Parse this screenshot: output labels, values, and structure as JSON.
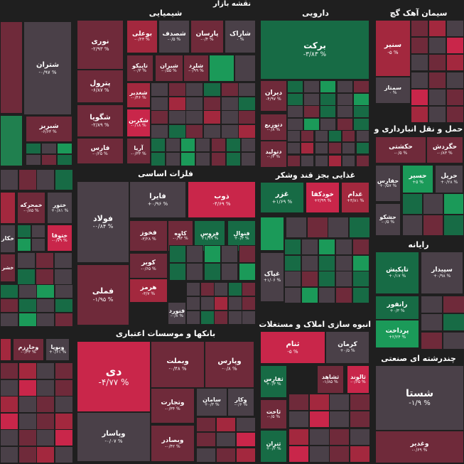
{
  "title": "نقشه بازار",
  "colors": {
    "pos": "#1b9a59",
    "pos_dark": "#176b45",
    "pos_mid": "#20804f",
    "neutral": "#4a4048",
    "neg_dark": "#6f2a3a",
    "neg": "#a3283e",
    "neg_bright": "#c9264a"
  },
  "chart_data": {
    "type": "treemap",
    "sectors": [
      {
        "name": "شیمیایی",
        "stocks": [
          {
            "name": "نوری",
            "change": "-۲/۹۳ %"
          },
          {
            "name": "بوعلی",
            "change": "-۰/۲۳ %"
          },
          {
            "name": "شصدف",
            "change": "-۰/۵ %"
          },
          {
            "name": "پارسان",
            "change": "-۰/۴ %"
          },
          {
            "name": "شاراک",
            "change": "۰ %"
          },
          {
            "name": "پترول",
            "change": "-۶/۸۷ %"
          },
          {
            "name": "تاپیکو",
            "change": "-۰/۳ %"
          },
          {
            "name": "شیران",
            "change": "-۰/۵۵ %"
          },
          {
            "name": "شلرد",
            "change": "-۰/۹۹ %"
          },
          {
            "name": "شگویا",
            "change": "-۲/۸۹ %"
          },
          {
            "name": "شغدیر",
            "change": "-۰/۴۶ %"
          },
          {
            "name": "فارس",
            "change": "-۰/۲۵ %"
          },
          {
            "name": "شکربن",
            "change": "-۰/۱۸ %"
          },
          {
            "name": "آریا",
            "change": "-۰/۳۳ %"
          }
        ]
      },
      {
        "name": "دارویی",
        "stocks": [
          {
            "name": "برکت",
            "change": "-۳/۸۳ %"
          },
          {
            "name": "دیران",
            "change": "-۴/۹۷ %"
          },
          {
            "name": "دتوزیع",
            "change": "-۰/۸ %"
          },
          {
            "name": "دتولید",
            "change": "-۰/۳ %"
          }
        ]
      },
      {
        "name": "سیمان آهک گچ",
        "stocks": [
          {
            "name": "سنیر",
            "change": "-۵ %"
          },
          {
            "name": "سمتاز",
            "change": "۰ %"
          }
        ]
      },
      {
        "name": "حمل و نقل انبارداری و",
        "stocks": [
          {
            "name": "حکشتی",
            "change": "-۰/۵ %"
          },
          {
            "name": "حگردش",
            "change": "-۰/۸۳ %"
          },
          {
            "name": "حفارس",
            "change": "+۰/۵۷ %"
          },
          {
            "name": "حسیر",
            "change": "+۵ %"
          },
          {
            "name": "حریل",
            "change": "+۰/۲۸ %"
          },
          {
            "name": "حشکو",
            "change": "-۰/۵ %"
          }
        ]
      },
      {
        "name": "فلزات اساسی",
        "stocks": [
          {
            "name": "فولاد",
            "change": "-۰/۸۴ %"
          },
          {
            "name": "فایرا",
            "change": "+۰/۹۶ %"
          },
          {
            "name": "ذوب",
            "change": "-۴/۶۹ %"
          },
          {
            "name": "فخوز",
            "change": "-۳/۲۸ %"
          },
          {
            "name": "کاوه",
            "change": "-۰/۹۳ %"
          },
          {
            "name": "فروس",
            "change": "+۱/۹۹ %"
          },
          {
            "name": "فنوال",
            "change": "+۰/۳ %"
          },
          {
            "name": "کویر",
            "change": "-۰/۶۵ %"
          },
          {
            "name": "فملی",
            "change": "-۱/۹۵ %"
          },
          {
            "name": "هرمز",
            "change": "-۳/۷ %"
          },
          {
            "name": "فنورد",
            "change": "-۰/۸ %"
          }
        ]
      },
      {
        "name": "غذایی بجز قند وشکر",
        "stocks": [
          {
            "name": "غزر",
            "change": "+۱/۶۹ %"
          },
          {
            "name": "خودکفا",
            "change": "+۲/۹۹ %"
          },
          {
            "name": "غدام",
            "change": "+۳/۸۱ %"
          },
          {
            "name": "غپاک",
            "change": "+۱/۰۶ %"
          }
        ]
      },
      {
        "name": "رایانه",
        "stocks": [
          {
            "name": "تاپکیش",
            "change": "+۰/۱۷ %"
          },
          {
            "name": "سپیدار",
            "change": "+۰/۹۸ %"
          },
          {
            "name": "رانفور",
            "change": "+۰/۳ %"
          },
          {
            "name": "پرداخت",
            "change": "+۲/۲۴ %"
          }
        ]
      },
      {
        "name": "بانکها و موسسات اعتباری",
        "stocks": [
          {
            "name": "دی",
            "change": "-۴/۷۷ %"
          },
          {
            "name": "وبملت",
            "change": "-۰/۴۸ %"
          },
          {
            "name": "وپارس",
            "change": "-۰/۸ %"
          },
          {
            "name": "وتجارت",
            "change": "-۰/۳۴ %"
          },
          {
            "name": "سامان",
            "change": "+۰/۳ %"
          },
          {
            "name": "وکار",
            "change": "-۰/۶ %"
          },
          {
            "name": "وپاسار",
            "change": "-۰/۰۷ %"
          },
          {
            "name": "وبصادر",
            "change": "-۰/۴۲ %"
          }
        ]
      },
      {
        "name": "انبوه سازی املاک و مستغلات",
        "stocks": [
          {
            "name": "ثنام",
            "change": "-۵ %"
          },
          {
            "name": "کرمان",
            "change": "+۰/۵ %"
          },
          {
            "name": "ثفارس",
            "change": "+۰/۳ %"
          },
          {
            "name": "ثشاهد",
            "change": "-۱/۸۵ %"
          },
          {
            "name": "ثالوند",
            "change": "-۰/۶۵ %"
          },
          {
            "name": "ثاخت",
            "change": "-۰/۵ %"
          },
          {
            "name": "ثتران",
            "change": "+۰/۲ %"
          }
        ]
      },
      {
        "name": "چندرشته ای صنعتی",
        "stocks": [
          {
            "name": "شستا",
            "change": "-۱/۹ %"
          },
          {
            "name": "وغدیر",
            "change": "-۰/۶۹ %"
          }
        ]
      },
      {
        "name": "",
        "stocks": [
          {
            "name": "شتران",
            "change": "-۰/۹۷ %"
          },
          {
            "name": "شبریز",
            "change": "-۶/۶۳ %"
          },
          {
            "name": "ختور",
            "change": "+۰/۸۱ %"
          },
          {
            "name": "خمحرکه",
            "change": "-۰/۸۵ %"
          },
          {
            "name": "ختوقا",
            "change": "-۰/۷۹ %"
          },
          {
            "name": "خکار",
            "change": ""
          },
          {
            "name": "خشر",
            "change": ""
          },
          {
            "name": "وبوپا",
            "change": "+۰/۶۱ %"
          },
          {
            "name": "وخارزم",
            "change": "-۰/۳۳ %"
          }
        ]
      }
    ]
  }
}
